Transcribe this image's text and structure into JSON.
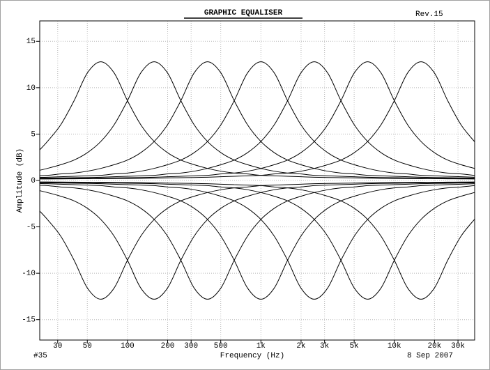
{
  "chart_data": {
    "type": "line",
    "title": "GRAPHIC EQUALISER",
    "annotations": [
      "Rev.15",
      "#35",
      "8 Sep 2007"
    ],
    "x_label": "Frequency (Hz)",
    "y_label": "Amplitude (dB)",
    "x_scale": "log",
    "grid": true,
    "xlim": [
      22,
      40000
    ],
    "ylim": [
      -17.2,
      17.2
    ],
    "xticks": [
      30,
      50,
      100,
      200,
      300,
      500,
      {
        "value": 1000,
        "label": "1k"
      },
      {
        "value": 2000,
        "label": "2k"
      },
      {
        "value": 3000,
        "label": "3k"
      },
      {
        "value": 5000,
        "label": "5k"
      },
      {
        "value": 10000,
        "label": "10k"
      },
      {
        "value": 20000,
        "label": "20k"
      },
      {
        "value": 30000,
        "label": "30k"
      }
    ],
    "yticks": [
      -15,
      -10,
      -5,
      0,
      5,
      10,
      15
    ],
    "x": [
      22,
      25.1,
      31.6,
      39.8,
      50.1,
      63.1,
      79.4,
      100,
      125.9,
      158.5,
      199.5,
      251.2,
      316.2,
      398.1,
      501.2,
      631,
      794.3,
      1000,
      1258.9,
      1584.9,
      1995.3,
      2511.9,
      3162.3,
      3981.1,
      5011.9,
      6309.6,
      7943.3,
      10000,
      12589,
      15849,
      19953,
      25119,
      31623,
      39811
    ],
    "series": [
      {
        "color": "#000000",
        "values": [
          3.3,
          4.2,
          6.0,
          8.6,
          11.6,
          12.8,
          11.6,
          8.6,
          6.0,
          4.2,
          3.0,
          2.2,
          1.7,
          1.3,
          1.0,
          0.8,
          0.7,
          0.55,
          0.5,
          0.45,
          0.4,
          0.35,
          0.32,
          0.3,
          0.28,
          0.25,
          0.23,
          0.22,
          0.21,
          0.2,
          0.19,
          0.18,
          0.17,
          0.16
        ]
      },
      {
        "color": "#000000",
        "values": [
          1.1,
          1.3,
          1.7,
          2.2,
          3.0,
          4.2,
          6.0,
          8.6,
          11.6,
          12.8,
          11.6,
          8.6,
          6.0,
          4.2,
          3.0,
          2.2,
          1.7,
          1.3,
          1.0,
          0.8,
          0.7,
          0.55,
          0.5,
          0.45,
          0.4,
          0.35,
          0.32,
          0.3,
          0.28,
          0.25,
          0.23,
          0.22,
          0.21,
          0.2
        ]
      },
      {
        "color": "#000000",
        "values": [
          0.52,
          0.55,
          0.7,
          0.8,
          1.0,
          1.3,
          1.7,
          2.2,
          3.0,
          4.2,
          6.0,
          8.6,
          11.6,
          12.8,
          11.6,
          8.6,
          6.0,
          4.2,
          3.0,
          2.2,
          1.7,
          1.3,
          1.0,
          0.8,
          0.7,
          0.55,
          0.5,
          0.45,
          0.4,
          0.35,
          0.32,
          0.3,
          0.28,
          0.25
        ]
      },
      {
        "color": "#000000",
        "values": [
          0.33,
          0.35,
          0.4,
          0.45,
          0.5,
          0.55,
          0.7,
          0.8,
          1.0,
          1.3,
          1.7,
          2.2,
          3.0,
          4.2,
          6.0,
          8.6,
          11.6,
          12.8,
          11.6,
          8.6,
          6.0,
          4.2,
          3.0,
          2.2,
          1.7,
          1.3,
          1.0,
          0.8,
          0.7,
          0.55,
          0.5,
          0.45,
          0.4,
          0.35
        ]
      },
      {
        "color": "#000000",
        "values": [
          0.24,
          0.25,
          0.28,
          0.3,
          0.32,
          0.35,
          0.4,
          0.45,
          0.5,
          0.55,
          0.7,
          0.8,
          1.0,
          1.3,
          1.7,
          2.2,
          3.0,
          4.2,
          6.0,
          8.6,
          11.6,
          12.8,
          11.6,
          8.6,
          6.0,
          4.2,
          3.0,
          2.2,
          1.7,
          1.3,
          1.0,
          0.8,
          0.7,
          0.55
        ]
      },
      {
        "color": "#000000",
        "values": [
          0.19,
          0.2,
          0.21,
          0.22,
          0.23,
          0.25,
          0.28,
          0.3,
          0.32,
          0.35,
          0.4,
          0.45,
          0.5,
          0.55,
          0.7,
          0.8,
          1.0,
          1.3,
          1.7,
          2.2,
          3.0,
          4.2,
          6.0,
          8.6,
          11.6,
          12.8,
          11.6,
          8.6,
          6.0,
          4.2,
          3.0,
          2.2,
          1.7,
          1.3
        ]
      },
      {
        "color": "#000000",
        "values": [
          0.16,
          0.16,
          0.17,
          0.18,
          0.19,
          0.2,
          0.21,
          0.22,
          0.23,
          0.25,
          0.28,
          0.3,
          0.32,
          0.35,
          0.4,
          0.45,
          0.5,
          0.55,
          0.7,
          0.8,
          1.0,
          1.3,
          1.7,
          2.2,
          3.0,
          4.2,
          6.0,
          8.6,
          11.6,
          12.8,
          11.6,
          8.6,
          6.0,
          4.2
        ]
      },
      {
        "color": "#000000",
        "values": [
          -3.3,
          -4.2,
          -6.0,
          -8.6,
          -11.6,
          -12.8,
          -11.6,
          -8.6,
          -6.0,
          -4.2,
          -3.0,
          -2.2,
          -1.7,
          -1.3,
          -1.0,
          -0.8,
          -0.7,
          -0.55,
          -0.5,
          -0.45,
          -0.4,
          -0.35,
          -0.32,
          -0.3,
          -0.28,
          -0.25,
          -0.23,
          -0.22,
          -0.21,
          -0.2,
          -0.19,
          -0.18,
          -0.17,
          -0.16
        ]
      },
      {
        "color": "#000000",
        "values": [
          -1.1,
          -1.3,
          -1.7,
          -2.2,
          -3.0,
          -4.2,
          -6.0,
          -8.6,
          -11.6,
          -12.8,
          -11.6,
          -8.6,
          -6.0,
          -4.2,
          -3.0,
          -2.2,
          -1.7,
          -1.3,
          -1.0,
          -0.8,
          -0.7,
          -0.55,
          -0.5,
          -0.45,
          -0.4,
          -0.35,
          -0.32,
          -0.3,
          -0.28,
          -0.25,
          -0.23,
          -0.22,
          -0.21,
          -0.2
        ]
      },
      {
        "color": "#000000",
        "values": [
          -0.52,
          -0.55,
          -0.7,
          -0.8,
          -1.0,
          -1.3,
          -1.7,
          -2.2,
          -3.0,
          -4.2,
          -6.0,
          -8.6,
          -11.6,
          -12.8,
          -11.6,
          -8.6,
          -6.0,
          -4.2,
          -3.0,
          -2.2,
          -1.7,
          -1.3,
          -1.0,
          -0.8,
          -0.7,
          -0.55,
          -0.5,
          -0.45,
          -0.4,
          -0.35,
          -0.32,
          -0.3,
          -0.28,
          -0.25
        ]
      },
      {
        "color": "#000000",
        "values": [
          -0.33,
          -0.35,
          -0.4,
          -0.45,
          -0.5,
          -0.55,
          -0.7,
          -0.8,
          -1.0,
          -1.3,
          -1.7,
          -2.2,
          -3.0,
          -4.2,
          -6.0,
          -8.6,
          -11.6,
          -12.8,
          -11.6,
          -8.6,
          -6.0,
          -4.2,
          -3.0,
          -2.2,
          -1.7,
          -1.3,
          -1.0,
          -0.8,
          -0.7,
          -0.55,
          -0.5,
          -0.45,
          -0.4,
          -0.35
        ]
      },
      {
        "color": "#000000",
        "values": [
          -0.24,
          -0.25,
          -0.28,
          -0.3,
          -0.32,
          -0.35,
          -0.4,
          -0.45,
          -0.5,
          -0.55,
          -0.7,
          -0.8,
          -1.0,
          -1.3,
          -1.7,
          -2.2,
          -3.0,
          -4.2,
          -6.0,
          -8.6,
          -11.6,
          -12.8,
          -11.6,
          -8.6,
          -6.0,
          -4.2,
          -3.0,
          -2.2,
          -1.7,
          -1.3,
          -1.0,
          -0.8,
          -0.7,
          -0.55
        ]
      },
      {
        "color": "#000000",
        "values": [
          -0.19,
          -0.2,
          -0.21,
          -0.22,
          -0.23,
          -0.25,
          -0.28,
          -0.3,
          -0.32,
          -0.35,
          -0.4,
          -0.45,
          -0.5,
          -0.55,
          -0.7,
          -0.8,
          -1.0,
          -1.3,
          -1.7,
          -2.2,
          -3.0,
          -4.2,
          -6.0,
          -8.6,
          -11.6,
          -12.8,
          -11.6,
          -8.6,
          -6.0,
          -4.2,
          -3.0,
          -2.2,
          -1.7,
          -1.3
        ]
      },
      {
        "color": "#000000",
        "values": [
          -0.16,
          -0.16,
          -0.17,
          -0.18,
          -0.19,
          -0.2,
          -0.21,
          -0.22,
          -0.23,
          -0.25,
          -0.28,
          -0.3,
          -0.32,
          -0.35,
          -0.4,
          -0.45,
          -0.5,
          -0.55,
          -0.7,
          -0.8,
          -1.0,
          -1.3,
          -1.7,
          -2.2,
          -3.0,
          -4.2,
          -6.0,
          -8.6,
          -11.6,
          -12.8,
          -11.6,
          -8.6,
          -6.0,
          -4.2
        ]
      }
    ]
  }
}
